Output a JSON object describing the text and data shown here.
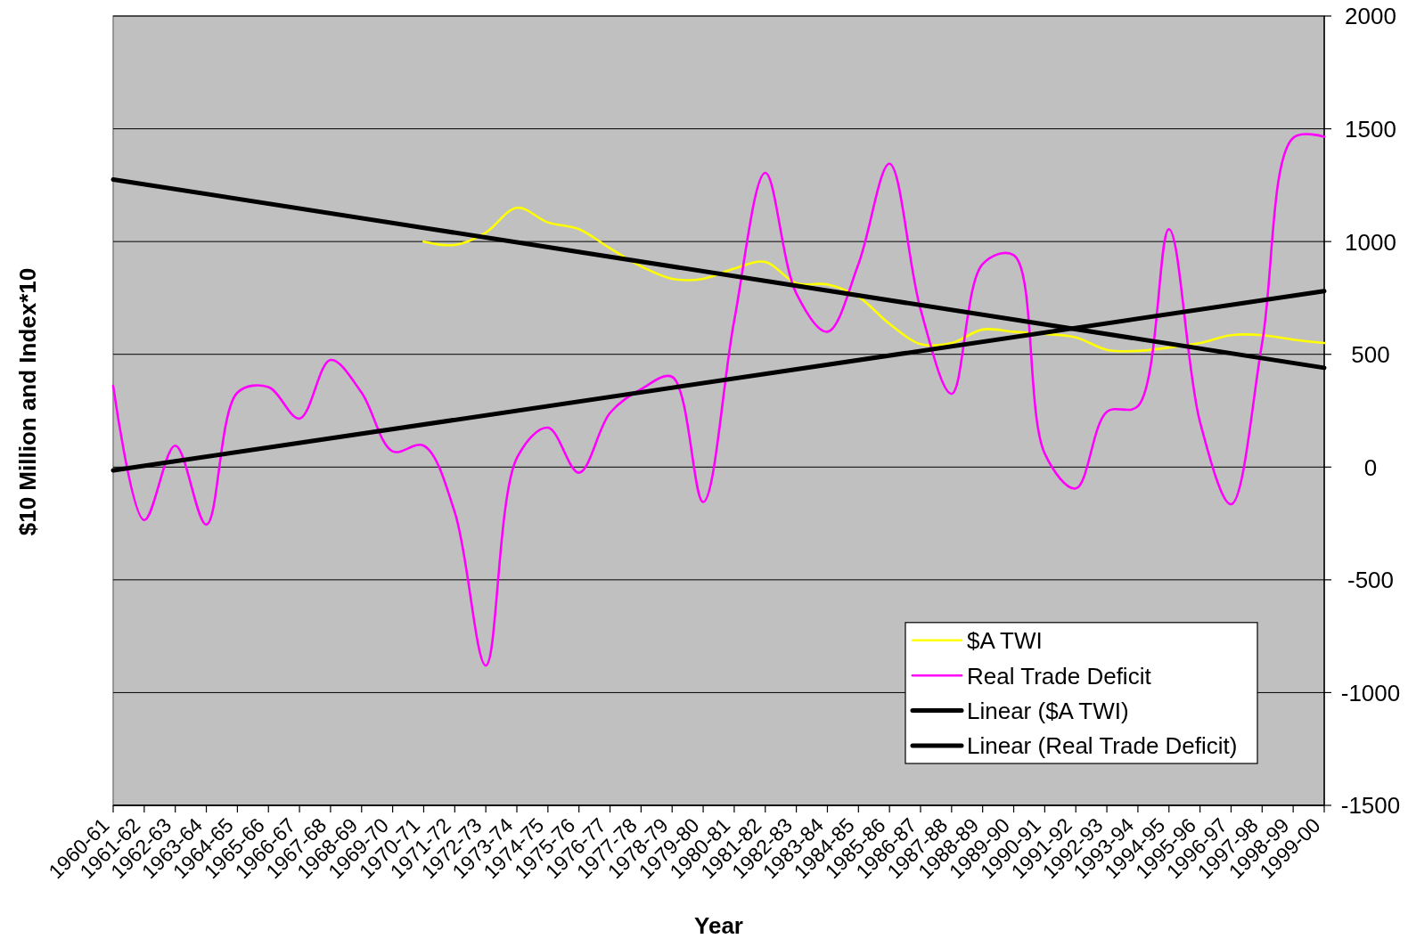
{
  "chart_data": {
    "type": "line",
    "xlabel": "Year",
    "ylabel": "$10 Million and Index*10",
    "categories": [
      "1960-61",
      "1961-62",
      "1962-63",
      "1963-64",
      "1964-65",
      "1965-66",
      "1966-67",
      "1967-68",
      "1968-69",
      "1969-70",
      "1970-71",
      "1971-72",
      "1972-73",
      "1973-74",
      "1974-75",
      "1975-76",
      "1976-77",
      "1977-78",
      "1978-79",
      "1979-80",
      "1980-81",
      "1981-82",
      "1982-83",
      "1983-84",
      "1984-85",
      "1985-86",
      "1986-87",
      "1987-88",
      "1988-89",
      "1989-90",
      "1990-91",
      "1991-92",
      "1992-93",
      "1993-94",
      "1994-95",
      "1995-96",
      "1996-97",
      "1997-98",
      "1998-99",
      "1999-00"
    ],
    "ylim": [
      -1500,
      2000
    ],
    "yticks": [
      -1500,
      -1000,
      -500,
      0,
      500,
      1000,
      1500,
      2000
    ],
    "grid": "y",
    "legend": "bottom right",
    "series": [
      {
        "name": "$A TWI",
        "color": "#ffff00",
        "values": [
          null,
          null,
          null,
          null,
          null,
          null,
          null,
          null,
          null,
          null,
          1000,
          985,
          1040,
          1150,
          1085,
          1055,
          970,
          890,
          835,
          835,
          880,
          910,
          815,
          810,
          755,
          635,
          545,
          550,
          610,
          600,
          590,
          575,
          520,
          515,
          530,
          550,
          585,
          585,
          565,
          550
        ]
      },
      {
        "name": "Real Trade Deficit",
        "color": "#ff00ff",
        "values": [
          360,
          -235,
          95,
          -255,
          330,
          355,
          215,
          475,
          330,
          70,
          95,
          -200,
          -880,
          40,
          175,
          -25,
          240,
          345,
          400,
          -155,
          650,
          1305,
          770,
          600,
          900,
          1345,
          700,
          325,
          900,
          940,
          60,
          -95,
          245,
          270,
          1055,
          200,
          -165,
          550,
          1460,
          1465
        ]
      },
      {
        "name": "Linear ($A TWI)",
        "type": "line",
        "color": "#000000",
        "x": [
          "1960-61",
          "1999-00"
        ],
        "values": [
          1275,
          440
        ]
      },
      {
        "name": "Linear (Real Trade Deficit)",
        "type": "line",
        "color": "#000000",
        "x": [
          "1960-61",
          "1999-00"
        ],
        "values": [
          -15,
          780
        ]
      }
    ]
  }
}
